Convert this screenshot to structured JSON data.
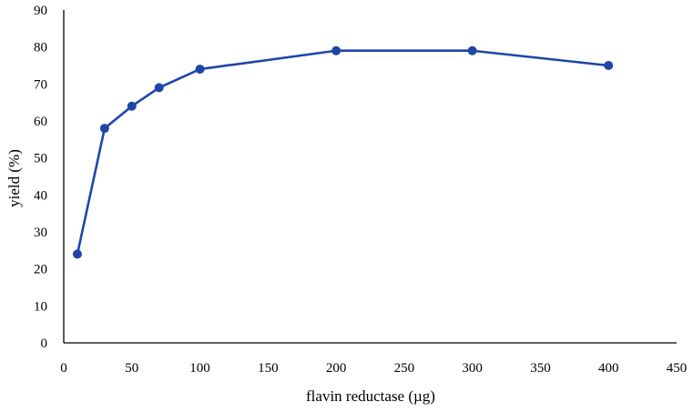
{
  "chart_data": {
    "type": "line",
    "title": "",
    "xlabel": "flavin reductase (µg)",
    "ylabel": "yield (%)",
    "xlim": [
      0,
      450
    ],
    "ylim": [
      0,
      90
    ],
    "x_ticks": [
      0,
      50,
      100,
      150,
      200,
      250,
      300,
      350,
      400,
      450
    ],
    "y_ticks": [
      0,
      10,
      20,
      30,
      40,
      50,
      60,
      70,
      80,
      90
    ],
    "grid": false,
    "legend": "none",
    "series": [
      {
        "color": "#1f45a8",
        "marker": "circle",
        "x": [
          10,
          30,
          50,
          70,
          100,
          200,
          300,
          400
        ],
        "y": [
          24,
          58,
          64,
          69,
          74,
          79,
          79,
          75
        ]
      }
    ]
  }
}
